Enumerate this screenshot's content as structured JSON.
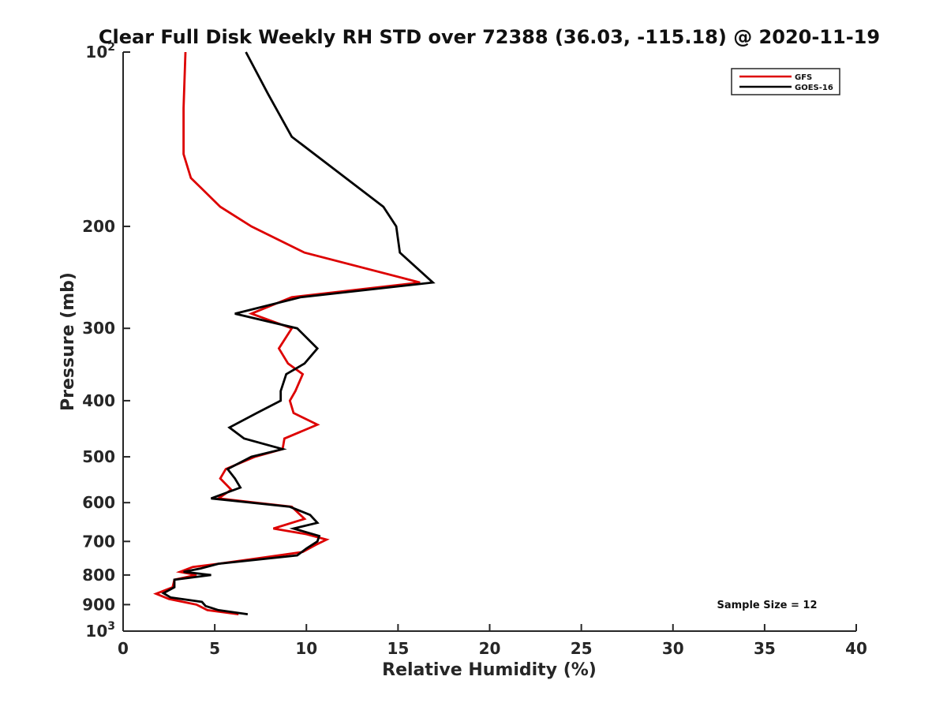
{
  "chart_data": {
    "type": "line",
    "title": "Clear Full Disk Weekly RH STD over 72388 (36.03, -115.18) @ 2020-11-19",
    "xlabel": "Relative Humidity (%)",
    "ylabel": "Pressure (mb)",
    "xlim": [
      0,
      40
    ],
    "ylim": [
      100,
      1000
    ],
    "yscale": "log",
    "y_reversed": true,
    "grid": false,
    "legend_position": "top-right",
    "xticks": [
      0,
      5,
      10,
      15,
      20,
      25,
      30,
      35,
      40
    ],
    "yticks": [
      {
        "value": 100,
        "base": "10",
        "exp": "2"
      },
      {
        "value": 200,
        "label": "200"
      },
      {
        "value": 300,
        "label": "300"
      },
      {
        "value": 400,
        "label": "400"
      },
      {
        "value": 500,
        "label": "500"
      },
      {
        "value": 600,
        "label": "600"
      },
      {
        "value": 700,
        "label": "700"
      },
      {
        "value": 800,
        "label": "800"
      },
      {
        "value": 900,
        "label": "900"
      },
      {
        "value": 1000,
        "base": "10",
        "exp": "3"
      }
    ],
    "annotation": "Sample Size = 12",
    "series": [
      {
        "name": "GFS",
        "color": "#dd0000",
        "points": [
          [
            3.4,
            100
          ],
          [
            3.3,
            125
          ],
          [
            3.3,
            150
          ],
          [
            3.7,
            165
          ],
          [
            5.3,
            185
          ],
          [
            7.0,
            200
          ],
          [
            9.9,
            222
          ],
          [
            16.2,
            250
          ],
          [
            9.2,
            265
          ],
          [
            7.0,
            283
          ],
          [
            9.2,
            300
          ],
          [
            8.5,
            325
          ],
          [
            9.0,
            345
          ],
          [
            9.8,
            360
          ],
          [
            9.4,
            385
          ],
          [
            9.1,
            400
          ],
          [
            9.3,
            420
          ],
          [
            10.6,
            440
          ],
          [
            8.8,
            465
          ],
          [
            8.7,
            485
          ],
          [
            7.2,
            500
          ],
          [
            5.6,
            525
          ],
          [
            5.3,
            545
          ],
          [
            5.9,
            570
          ],
          [
            5.2,
            590
          ],
          [
            9.2,
            610
          ],
          [
            9.9,
            640
          ],
          [
            8.2,
            665
          ],
          [
            10.0,
            680
          ],
          [
            11.1,
            695
          ],
          [
            10.5,
            710
          ],
          [
            9.8,
            730
          ],
          [
            7.8,
            745
          ],
          [
            5.2,
            765
          ],
          [
            3.8,
            775
          ],
          [
            3.1,
            790
          ],
          [
            4.0,
            800
          ],
          [
            2.8,
            815
          ],
          [
            2.7,
            840
          ],
          [
            1.8,
            862
          ],
          [
            2.5,
            880
          ],
          [
            4.0,
            900
          ],
          [
            4.6,
            920
          ],
          [
            6.3,
            935
          ]
        ]
      },
      {
        "name": "GOES-16",
        "color": "#000000",
        "points": [
          [
            6.7,
            100
          ],
          [
            7.9,
            118
          ],
          [
            9.2,
            140
          ],
          [
            14.2,
            185
          ],
          [
            14.9,
            200
          ],
          [
            15.1,
            222
          ],
          [
            16.9,
            250
          ],
          [
            9.7,
            265
          ],
          [
            6.1,
            283
          ],
          [
            9.5,
            300
          ],
          [
            10.6,
            325
          ],
          [
            9.9,
            345
          ],
          [
            8.9,
            360
          ],
          [
            8.6,
            385
          ],
          [
            8.6,
            400
          ],
          [
            7.3,
            420
          ],
          [
            5.8,
            445
          ],
          [
            6.6,
            465
          ],
          [
            8.7,
            485
          ],
          [
            7.0,
            500
          ],
          [
            5.7,
            525
          ],
          [
            6.1,
            545
          ],
          [
            6.4,
            565
          ],
          [
            4.8,
            590
          ],
          [
            9.1,
            610
          ],
          [
            10.2,
            630
          ],
          [
            10.6,
            650
          ],
          [
            9.3,
            665
          ],
          [
            10.7,
            685
          ],
          [
            10.6,
            700
          ],
          [
            10.0,
            720
          ],
          [
            9.5,
            740
          ],
          [
            5.2,
            765
          ],
          [
            4.2,
            780
          ],
          [
            3.3,
            790
          ],
          [
            4.8,
            800
          ],
          [
            2.8,
            815
          ],
          [
            2.8,
            840
          ],
          [
            2.2,
            860
          ],
          [
            2.6,
            875
          ],
          [
            4.3,
            890
          ],
          [
            4.5,
            905
          ],
          [
            5.2,
            920
          ],
          [
            6.8,
            935
          ]
        ]
      }
    ]
  }
}
